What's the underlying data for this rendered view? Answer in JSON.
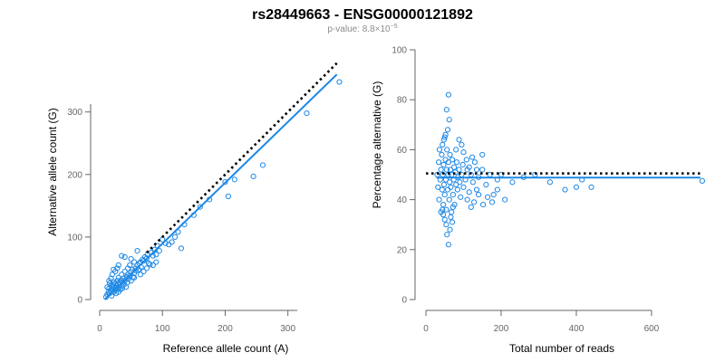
{
  "header": {
    "title": "rs28449663 - ENSG00000121892",
    "subtitle_prefix": "p-value: 8.8",
    "subtitle_times": "×",
    "subtitle_base": "10",
    "subtitle_exp": "−5"
  },
  "colors": {
    "points": "#1e88e5",
    "fit_line": "#1e88e5",
    "reference_line": "#000000"
  },
  "chart_data": [
    {
      "type": "scatter",
      "xlabel": "Reference allele count (A)",
      "ylabel": "Alternative allele count (G)",
      "xlim": [
        0,
        390
      ],
      "ylim": [
        0,
        330
      ],
      "xticks": [
        "0",
        "100",
        "200",
        "300"
      ],
      "yticks": [
        "0",
        "100",
        "200",
        "300"
      ],
      "grid": false,
      "marker": "open-circle",
      "fit_line": {
        "x": [
          8,
          378
        ],
        "y": [
          0,
          360
        ],
        "style": "solid",
        "color": "#1e88e5"
      },
      "reference_line": {
        "x": [
          75,
          378
        ],
        "y": [
          75,
          378
        ],
        "style": "dotted",
        "color": "#000000"
      },
      "points": [
        [
          12,
          8
        ],
        [
          14,
          12
        ],
        [
          15,
          18
        ],
        [
          16,
          10
        ],
        [
          18,
          14
        ],
        [
          18,
          22
        ],
        [
          19,
          6
        ],
        [
          20,
          16
        ],
        [
          21,
          24
        ],
        [
          22,
          12
        ],
        [
          22,
          20
        ],
        [
          23,
          28
        ],
        [
          24,
          15
        ],
        [
          25,
          19
        ],
        [
          25,
          26
        ],
        [
          26,
          10
        ],
        [
          27,
          22
        ],
        [
          28,
          30
        ],
        [
          28,
          17
        ],
        [
          29,
          24
        ],
        [
          30,
          12
        ],
        [
          30,
          35
        ],
        [
          31,
          20
        ],
        [
          32,
          27
        ],
        [
          33,
          16
        ],
        [
          34,
          31
        ],
        [
          35,
          22
        ],
        [
          35,
          40
        ],
        [
          36,
          18
        ],
        [
          37,
          28
        ],
        [
          38,
          34
        ],
        [
          39,
          24
        ],
        [
          40,
          45
        ],
        [
          40,
          30
        ],
        [
          42,
          20
        ],
        [
          43,
          36
        ],
        [
          44,
          27
        ],
        [
          45,
          50
        ],
        [
          45,
          40
        ],
        [
          46,
          33
        ],
        [
          48,
          38
        ],
        [
          48,
          55
        ],
        [
          50,
          44
        ],
        [
          50,
          30
        ],
        [
          52,
          48
        ],
        [
          53,
          36
        ],
        [
          55,
          42
        ],
        [
          55,
          60
        ],
        [
          57,
          50
        ],
        [
          58,
          46
        ],
        [
          60,
          55
        ],
        [
          62,
          48
        ],
        [
          63,
          58
        ],
        [
          65,
          60
        ],
        [
          66,
          52
        ],
        [
          68,
          64
        ],
        [
          70,
          62
        ],
        [
          72,
          68
        ],
        [
          75,
          66
        ],
        [
          76,
          72
        ],
        [
          78,
          58
        ],
        [
          80,
          56
        ],
        [
          82,
          75
        ],
        [
          85,
          70
        ],
        [
          88,
          80
        ],
        [
          90,
          72
        ],
        [
          92,
          86
        ],
        [
          95,
          78
        ],
        [
          100,
          96
        ],
        [
          105,
          90
        ],
        [
          110,
          88
        ],
        [
          115,
          92
        ],
        [
          120,
          100
        ],
        [
          125,
          108
        ],
        [
          130,
          82
        ],
        [
          135,
          120
        ],
        [
          150,
          135
        ],
        [
          160,
          148
        ],
        [
          175,
          160
        ],
        [
          200,
          188
        ],
        [
          205,
          165
        ],
        [
          215,
          192
        ],
        [
          245,
          197
        ],
        [
          260,
          215
        ],
        [
          330,
          298
        ],
        [
          382,
          348
        ],
        [
          15,
          30
        ],
        [
          18,
          34
        ],
        [
          20,
          40
        ],
        [
          25,
          45
        ],
        [
          28,
          50
        ],
        [
          30,
          55
        ],
        [
          22,
          48
        ],
        [
          35,
          70
        ],
        [
          40,
          68
        ],
        [
          50,
          65
        ],
        [
          60,
          78
        ],
        [
          55,
          35
        ],
        [
          65,
          40
        ],
        [
          70,
          45
        ],
        [
          75,
          50
        ],
        [
          85,
          55
        ],
        [
          90,
          60
        ],
        [
          10,
          4
        ],
        [
          12,
          20
        ],
        [
          16,
          26
        ]
      ]
    },
    {
      "type": "scatter",
      "xlabel": "Total number of reads",
      "ylabel": "Percentage alternative (G)",
      "xlim": [
        0,
        740
      ],
      "ylim": [
        0,
        100
      ],
      "xticks": [
        "0",
        "200",
        "400",
        "600"
      ],
      "yticks": [
        "0",
        "20",
        "40",
        "60",
        "80",
        "100"
      ],
      "grid": false,
      "marker": "open-circle",
      "fit_line": {
        "x": [
          28,
          730
        ],
        "y": [
          48.8,
          48.8
        ],
        "style": "solid",
        "color": "#1e88e5"
      },
      "reference_line": {
        "x": [
          0,
          735
        ],
        "y": [
          50.5,
          50.5
        ],
        "style": "dotted",
        "color": "#000000"
      },
      "points": [
        [
          30,
          50
        ],
        [
          32,
          45
        ],
        [
          34,
          55
        ],
        [
          35,
          40
        ],
        [
          36,
          60
        ],
        [
          38,
          48
        ],
        [
          40,
          52
        ],
        [
          40,
          35
        ],
        [
          42,
          58
        ],
        [
          43,
          44
        ],
        [
          44,
          62
        ],
        [
          45,
          50
        ],
        [
          46,
          38
        ],
        [
          47,
          54
        ],
        [
          48,
          46
        ],
        [
          50,
          65
        ],
        [
          50,
          42
        ],
        [
          52,
          56
        ],
        [
          53,
          48
        ],
        [
          54,
          36
        ],
        [
          55,
          52
        ],
        [
          56,
          60
        ],
        [
          58,
          44
        ],
        [
          59,
          50
        ],
        [
          60,
          55
        ],
        [
          62,
          40
        ],
        [
          63,
          47
        ],
        [
          64,
          58
        ],
        [
          65,
          52
        ],
        [
          66,
          45
        ],
        [
          68,
          50
        ],
        [
          70,
          56
        ],
        [
          72,
          42
        ],
        [
          74,
          48
        ],
        [
          75,
          53
        ],
        [
          76,
          38
        ],
        [
          78,
          51
        ],
        [
          80,
          46
        ],
        [
          82,
          55
        ],
        [
          84,
          44
        ],
        [
          85,
          49
        ],
        [
          88,
          52
        ],
        [
          90,
          47
        ],
        [
          92,
          41
        ],
        [
          95,
          50
        ],
        [
          98,
          54
        ],
        [
          100,
          45
        ],
        [
          105,
          48
        ],
        [
          110,
          52
        ],
        [
          115,
          43
        ],
        [
          120,
          50
        ],
        [
          125,
          47
        ],
        [
          130,
          55
        ],
        [
          135,
          44
        ],
        [
          140,
          49
        ],
        [
          150,
          52
        ],
        [
          160,
          46
        ],
        [
          170,
          50
        ],
        [
          180,
          42
        ],
        [
          190,
          48
        ],
        [
          200,
          50
        ],
        [
          210,
          40
        ],
        [
          230,
          47
        ],
        [
          260,
          49
        ],
        [
          290,
          50
        ],
        [
          330,
          47
        ],
        [
          370,
          44
        ],
        [
          400,
          45
        ],
        [
          415,
          48
        ],
        [
          440,
          45
        ],
        [
          735,
          47.5
        ],
        [
          60,
          82
        ],
        [
          55,
          76
        ],
        [
          62,
          72
        ],
        [
          58,
          68
        ],
        [
          52,
          66
        ],
        [
          48,
          64
        ],
        [
          54,
          30
        ],
        [
          56,
          26
        ],
        [
          60,
          22
        ],
        [
          50,
          32
        ],
        [
          46,
          34
        ],
        [
          44,
          36
        ],
        [
          64,
          28
        ],
        [
          66,
          33
        ],
        [
          68,
          35
        ],
        [
          70,
          31
        ],
        [
          72,
          37
        ],
        [
          110,
          40
        ],
        [
          120,
          37
        ],
        [
          128,
          39
        ],
        [
          140,
          42
        ],
        [
          152,
          38
        ],
        [
          164,
          41
        ],
        [
          176,
          39
        ],
        [
          190,
          44
        ],
        [
          95,
          62
        ],
        [
          100,
          59
        ],
        [
          108,
          56
        ],
        [
          115,
          53
        ],
        [
          123,
          57
        ],
        [
          135,
          52
        ],
        [
          150,
          58
        ],
        [
          88,
          64
        ],
        [
          80,
          60
        ]
      ]
    }
  ]
}
